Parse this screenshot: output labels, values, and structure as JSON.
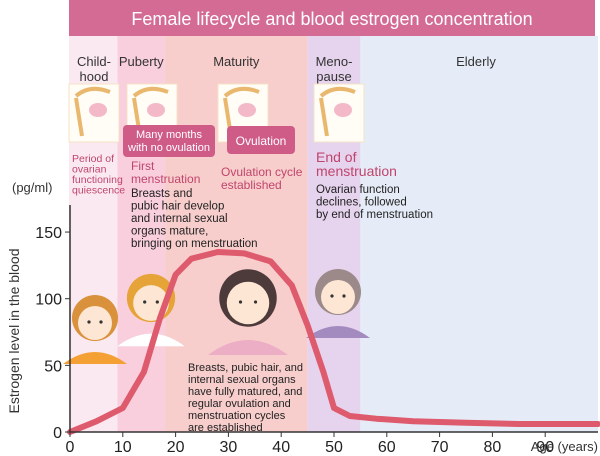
{
  "chart_data": {
    "type": "line",
    "title": "Female lifecycle and blood estrogen concentration",
    "xlabel": "Age (years)",
    "ylabel": "Estrogen level in the blood",
    "y_unit": "(pg/ml)",
    "xlim": [
      0,
      100
    ],
    "ylim": [
      0,
      150
    ],
    "x_ticks": [
      "0",
      "10",
      "20",
      "30",
      "40",
      "50",
      "60",
      "70",
      "80",
      "90"
    ],
    "y_ticks": [
      "0",
      "50",
      "100",
      "150"
    ],
    "grid": false,
    "series": [
      {
        "x": [
          0,
          5,
          10,
          14,
          17,
          20,
          23,
          28,
          33,
          38,
          42,
          45,
          48,
          50,
          53,
          58,
          65,
          75,
          85,
          100
        ],
        "y": [
          0,
          8,
          18,
          45,
          85,
          118,
          130,
          135,
          134,
          128,
          110,
          80,
          45,
          18,
          12,
          10,
          8,
          7,
          6,
          6
        ]
      }
    ],
    "stages": [
      {
        "key": "childhood",
        "label": "Child-\nhood",
        "from": 0,
        "to": 9,
        "color": "#fbe9f1"
      },
      {
        "key": "puberty",
        "label": "Puberty",
        "from": 9,
        "to": 18,
        "color": "#f9cfdd"
      },
      {
        "key": "maturity",
        "label": "Maturity",
        "from": 18,
        "to": 45,
        "color": "#f8cecd"
      },
      {
        "key": "menopause",
        "label": "Meno-\npause",
        "from": 45,
        "to": 55,
        "color": "#e6d3ee"
      },
      {
        "key": "elderly",
        "label": "Elderly",
        "from": 55,
        "to": 100,
        "color": "#e5ecf8"
      }
    ],
    "stage_notes": {
      "childhood_title": "Period of\novarian\nfunctioning\nquiescence",
      "puberty_title": "First\nmenstruation",
      "puberty_text": "Breasts and\npubic hair develop\nand internal sexual\norgans mature,\nbringing on menstruation",
      "maturity_title": "Ovulation cycle\nestablished",
      "maturity_text": "Breasts, pubic hair, and\ninternal sexual organs\nhave fully matured, and\nregular ovulation and\nmenstruation cycles\nare established",
      "menopause_title": "End of\nmenstruation",
      "menopause_text": "Ovarian function\ndeclines, followed\nby end of menstruation"
    },
    "badges": {
      "no_ovulation": "Many months\nwith no ovulation",
      "ovulation": "Ovulation"
    },
    "colors": {
      "title_bar": "#d46b95",
      "curve": "#de5a6d",
      "accent_text": "#c0456c",
      "badge": "#cf5b87",
      "axis": "#333333"
    }
  }
}
